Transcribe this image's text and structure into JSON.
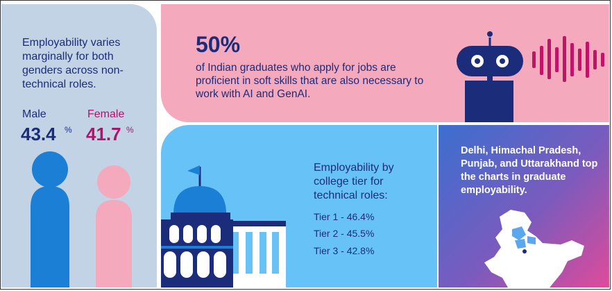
{
  "gender": {
    "description": "Employability varies marginally for both genders across non-technical roles.",
    "male_label": "Male",
    "male_value": "43.4",
    "female_label": "Female",
    "female_value": "41.7",
    "percent_symbol": "%",
    "male_color": "#1b7fd6",
    "female_color": "#f5a9bd"
  },
  "soft_skills": {
    "stat": "50%",
    "text": "of Indian graduates who apply for jobs are proficient in soft skills that are also necessary to work with AI and GenAI.",
    "icon": "robot-icon"
  },
  "college": {
    "heading": "Employability by college tier for technical roles:",
    "tiers": [
      "Tier 1 - 46.4%",
      "Tier 2 - 45.5%",
      "Tier 3 - 42.8%"
    ],
    "icon": "college-building-icon"
  },
  "states": {
    "text": "Delhi, Himachal Pradesh, Punjab, and Uttarakhand top the charts in graduate employability.",
    "icon": "india-map-icon"
  },
  "colors": {
    "navy": "#1b2c7a",
    "magenta": "#b0146a",
    "pink": "#f5a9bd",
    "sky": "#67c3f7",
    "light_blue": "#c2d3e6"
  }
}
